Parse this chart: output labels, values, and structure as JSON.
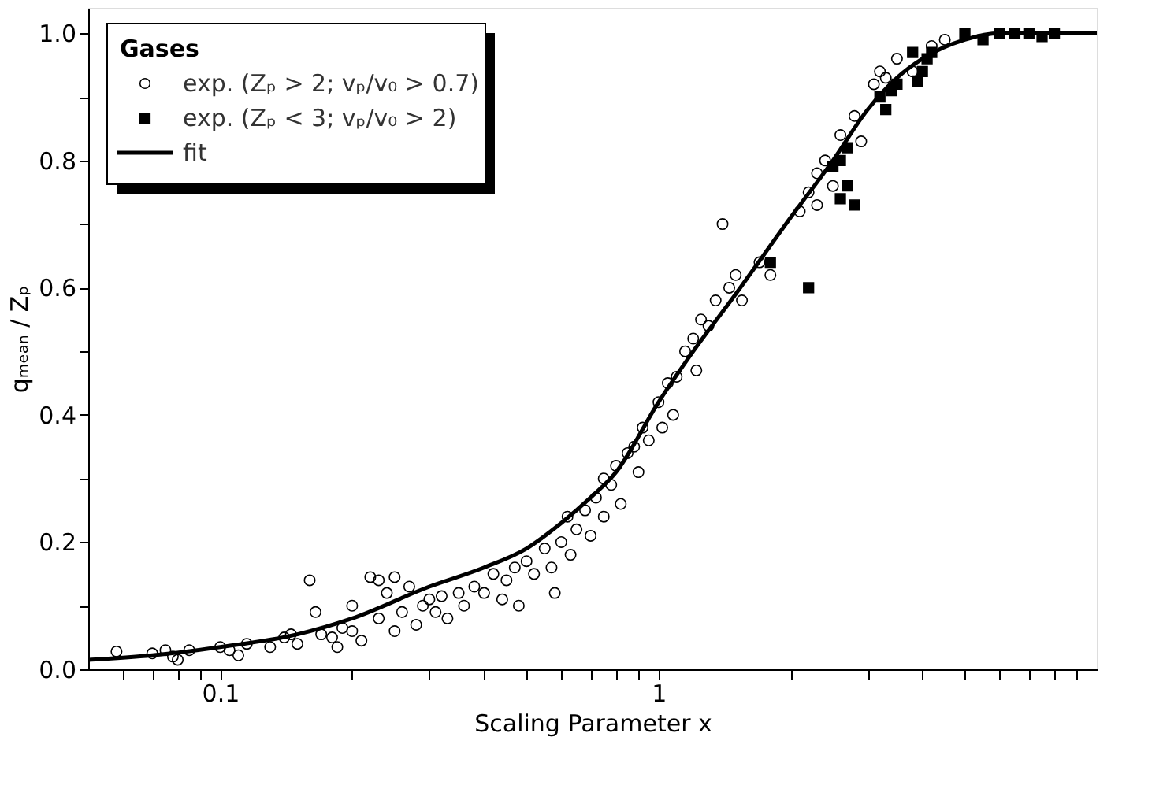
{
  "chart_data": {
    "type": "scatter",
    "xlabel": "Scaling Parameter x",
    "ylabel": "qₘₑₐₙ / Zₚ",
    "legend_title": "Gases",
    "legend": "top left",
    "log": "x",
    "grid": false,
    "xlim": [
      0.05,
      10
    ],
    "ylim": [
      0,
      1.04
    ],
    "xticks": [
      {
        "value": 0.06,
        "label": null
      },
      {
        "value": 0.07,
        "label": null
      },
      {
        "value": 0.08,
        "label": null
      },
      {
        "value": 0.09,
        "label": null
      },
      0.1,
      {
        "value": 0.2,
        "label": null
      },
      {
        "value": 0.3,
        "label": null
      },
      {
        "value": 0.4,
        "label": null
      },
      {
        "value": 0.5,
        "label": null
      },
      {
        "value": 0.6,
        "label": null
      },
      {
        "value": 0.7,
        "label": null
      },
      {
        "value": 0.8,
        "label": null
      },
      {
        "value": 0.9,
        "label": null
      },
      1,
      {
        "value": 2,
        "label": null
      },
      {
        "value": 3,
        "label": null
      },
      {
        "value": 4,
        "label": null
      },
      {
        "value": 5,
        "label": null
      },
      {
        "value": 6,
        "label": null
      },
      {
        "value": 7,
        "label": null
      },
      {
        "value": 8,
        "label": null
      },
      {
        "value": 9,
        "label": null
      }
    ],
    "yticks": [
      {
        "value": 0,
        "label": "0.0"
      },
      {
        "value": 0.1,
        "label": null
      },
      {
        "value": 0.2,
        "label": "0.2"
      },
      {
        "value": 0.3,
        "label": null
      },
      {
        "value": 0.4,
        "label": "0.4"
      },
      {
        "value": 0.5,
        "label": null
      },
      {
        "value": 0.6,
        "label": "0.6"
      },
      {
        "value": 0.7,
        "label": null
      },
      {
        "value": 0.8,
        "label": "0.8"
      },
      {
        "value": 0.9,
        "label": null
      },
      {
        "value": 1.0,
        "label": "1.0"
      }
    ],
    "series": [
      {
        "name": "exp. (Zₚ > 2; vₚ/v₀ > 0.7)",
        "type": "scatter",
        "marker": "circle",
        "color": "#000000",
        "x": [
          0.058,
          0.07,
          0.075,
          0.078,
          0.08,
          0.085,
          0.1,
          0.105,
          0.11,
          0.115,
          0.13,
          0.14,
          0.145,
          0.15,
          0.16,
          0.165,
          0.17,
          0.18,
          0.185,
          0.19,
          0.2,
          0.2,
          0.21,
          0.22,
          0.23,
          0.23,
          0.24,
          0.25,
          0.25,
          0.26,
          0.27,
          0.28,
          0.29,
          0.3,
          0.31,
          0.32,
          0.33,
          0.35,
          0.36,
          0.38,
          0.4,
          0.42,
          0.44,
          0.45,
          0.47,
          0.48,
          0.5,
          0.52,
          0.55,
          0.57,
          0.58,
          0.6,
          0.62,
          0.63,
          0.65,
          0.68,
          0.7,
          0.72,
          0.75,
          0.75,
          0.78,
          0.8,
          0.82,
          0.85,
          0.88,
          0.9,
          0.92,
          0.95,
          1.0,
          1.02,
          1.05,
          1.08,
          1.1,
          1.15,
          1.2,
          1.22,
          1.25,
          1.3,
          1.35,
          1.4,
          1.45,
          1.5,
          1.55,
          1.7,
          1.8,
          2.1,
          2.2,
          2.3,
          2.3,
          2.4,
          2.5,
          2.6,
          2.8,
          2.9,
          3.1,
          3.2,
          3.3,
          3.5,
          3.8,
          4.2,
          4.5
        ],
        "values": [
          0.028,
          0.025,
          0.03,
          0.02,
          0.015,
          0.03,
          0.035,
          0.03,
          0.022,
          0.04,
          0.035,
          0.05,
          0.055,
          0.04,
          0.14,
          0.09,
          0.055,
          0.05,
          0.035,
          0.065,
          0.1,
          0.06,
          0.045,
          0.145,
          0.14,
          0.08,
          0.12,
          0.145,
          0.06,
          0.09,
          0.13,
          0.07,
          0.1,
          0.11,
          0.09,
          0.115,
          0.08,
          0.12,
          0.1,
          0.13,
          0.12,
          0.15,
          0.11,
          0.14,
          0.16,
          0.1,
          0.17,
          0.15,
          0.19,
          0.16,
          0.12,
          0.2,
          0.24,
          0.18,
          0.22,
          0.25,
          0.21,
          0.27,
          0.3,
          0.24,
          0.29,
          0.32,
          0.26,
          0.34,
          0.35,
          0.31,
          0.38,
          0.36,
          0.42,
          0.38,
          0.45,
          0.4,
          0.46,
          0.5,
          0.52,
          0.47,
          0.55,
          0.54,
          0.58,
          0.7,
          0.6,
          0.62,
          0.58,
          0.64,
          0.62,
          0.72,
          0.75,
          0.78,
          0.73,
          0.8,
          0.76,
          0.84,
          0.87,
          0.83,
          0.92,
          0.94,
          0.93,
          0.96,
          0.94,
          0.98,
          0.99
        ]
      },
      {
        "name": "exp. (Zₚ < 3; vₚ/v₀ > 2)",
        "type": "scatter",
        "marker": "square",
        "color": "#000000",
        "x": [
          1.8,
          2.2,
          2.5,
          2.6,
          2.7,
          2.8,
          2.6,
          2.7,
          3.2,
          3.3,
          3.4,
          3.5,
          3.8,
          3.9,
          4.0,
          4.1,
          4.2,
          5.0,
          5.5,
          6.0,
          6.5,
          7.0,
          7.5,
          8.0
        ],
        "values": [
          0.64,
          0.6,
          0.79,
          0.8,
          0.76,
          0.73,
          0.74,
          0.82,
          0.9,
          0.88,
          0.91,
          0.92,
          0.97,
          0.925,
          0.94,
          0.96,
          0.97,
          1.0,
          0.99,
          1.0,
          1.0,
          1.0,
          0.995,
          1.0
        ]
      },
      {
        "name": "fit",
        "type": "line",
        "marker": "none",
        "line_style": "solid",
        "color": "#000000",
        "x": [
          0.05,
          0.07,
          0.1,
          0.15,
          0.2,
          0.3,
          0.4,
          0.5,
          0.6,
          0.7,
          0.8,
          1.0,
          1.2,
          1.5,
          2.0,
          2.5,
          3.0,
          3.5,
          4.0,
          5.0,
          6.0,
          7.0,
          8.0,
          10.0
        ],
        "values": [
          0.015,
          0.022,
          0.035,
          0.055,
          0.08,
          0.13,
          0.16,
          0.19,
          0.23,
          0.27,
          0.31,
          0.42,
          0.5,
          0.59,
          0.71,
          0.8,
          0.88,
          0.93,
          0.96,
          0.99,
          1.0,
          1.0,
          1.0,
          1.0
        ]
      }
    ]
  }
}
